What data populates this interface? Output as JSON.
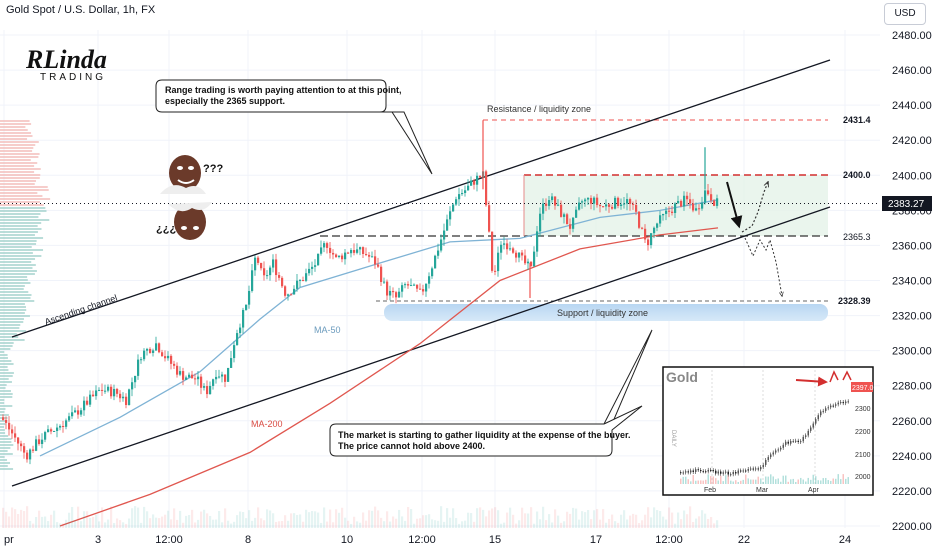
{
  "header": {
    "title": "Gold Spot / U.S. Dollar, 1h, FX",
    "currency_button": "USD"
  },
  "logo": {
    "mark": "RLinda",
    "sub": "TRADING"
  },
  "colors": {
    "up": "#26a69a",
    "down": "#ef5350",
    "ma50": "#7fb3d5",
    "ma200": "#e0574f",
    "channel": "#131722",
    "resistance": "#ef5350",
    "current_price": "#131722"
  },
  "annotations": {
    "callout_top": [
      "Range trading is worth paying attention to at this point,",
      "especially the 2365 support."
    ],
    "callout_bottom": [
      "The market is starting to gather liquidity at the expense of the buyer.",
      "The price cannot hold above 2400."
    ],
    "resistance_zone": "Resistance / liquidity zone",
    "support_zone": "Support / liquidity zone",
    "ascending_channel": "Ascending channel",
    "ma50": "MA-50",
    "ma200": "MA-200",
    "level_2431": "2431.4",
    "level_2400": "2400.0",
    "level_2365": "2365.3",
    "level_2328": "2328.39",
    "current_price": "2383.27",
    "meme_top": "???",
    "meme_bottom": "¿¿¿"
  },
  "inset": {
    "title": "Gold",
    "price_tag": "2397.0",
    "y_ticks": [
      "2300",
      "2200",
      "2100",
      "2000"
    ],
    "x_ticks": [
      "Feb",
      "Mar",
      "Apr"
    ],
    "side_label": "DAILY"
  },
  "chart_data": {
    "type": "candlestick",
    "title": "Gold Spot / U.S. Dollar, 1h, FX",
    "y_ticks": [
      2480,
      2460,
      2440,
      2420,
      2400,
      2380,
      2360,
      2340,
      2320,
      2300,
      2280,
      2260,
      2240,
      2220,
      2200
    ],
    "ylim": [
      2198,
      2488
    ],
    "x_ticks": [
      "pr",
      "3",
      "12:00",
      "8",
      "10",
      "12:00",
      "15",
      "17",
      "12:00",
      "22",
      "24"
    ],
    "levels": [
      {
        "name": "resistance",
        "value": 2431.4
      },
      {
        "name": "range-top",
        "value": 2400.0
      },
      {
        "name": "range-bottom",
        "value": 2365.3
      },
      {
        "name": "support",
        "value": 2328.39
      },
      {
        "name": "last-price",
        "value": 2383.27
      }
    ],
    "path_closes": [
      [
        0,
        2262
      ],
      [
        12,
        2252
      ],
      [
        25,
        2240
      ],
      [
        40,
        2250
      ],
      [
        55,
        2256
      ],
      [
        70,
        2262
      ],
      [
        85,
        2270
      ],
      [
        100,
        2278
      ],
      [
        115,
        2276
      ],
      [
        125,
        2272
      ],
      [
        140,
        2298
      ],
      [
        155,
        2304
      ],
      [
        165,
        2296
      ],
      [
        180,
        2286
      ],
      [
        195,
        2284
      ],
      [
        205,
        2276
      ],
      [
        215,
        2288
      ],
      [
        225,
        2284
      ],
      [
        235,
        2310
      ],
      [
        245,
        2325
      ],
      [
        255,
        2355
      ],
      [
        262,
        2340
      ],
      [
        272,
        2350
      ],
      [
        285,
        2332
      ],
      [
        300,
        2340
      ],
      [
        315,
        2350
      ],
      [
        325,
        2362
      ],
      [
        335,
        2352
      ],
      [
        350,
        2358
      ],
      [
        365,
        2355
      ],
      [
        375,
        2350
      ],
      [
        385,
        2334
      ],
      [
        395,
        2330
      ],
      [
        405,
        2338
      ],
      [
        420,
        2332
      ],
      [
        432,
        2350
      ],
      [
        445,
        2372
      ],
      [
        455,
        2388
      ],
      [
        465,
        2392
      ],
      [
        475,
        2398
      ],
      [
        482,
        2400
      ],
      [
        487,
        2372
      ],
      [
        492,
        2340
      ],
      [
        500,
        2362
      ],
      [
        510,
        2360
      ],
      [
        520,
        2352
      ],
      [
        530,
        2346
      ],
      [
        538,
        2378
      ],
      [
        548,
        2388
      ],
      [
        558,
        2380
      ],
      [
        570,
        2370
      ],
      [
        580,
        2385
      ],
      [
        590,
        2386
      ],
      [
        600,
        2382
      ],
      [
        612,
        2384
      ],
      [
        625,
        2386
      ],
      [
        635,
        2378
      ],
      [
        645,
        2360
      ],
      [
        655,
        2372
      ],
      [
        665,
        2378
      ],
      [
        675,
        2383
      ],
      [
        685,
        2386
      ],
      [
        695,
        2380
      ],
      [
        705,
        2392
      ],
      [
        712,
        2386
      ],
      [
        718,
        2383
      ]
    ],
    "series": [
      {
        "name": "MA-50",
        "values": [
          [
            40,
            2240
          ],
          [
            120,
            2262
          ],
          [
            200,
            2288
          ],
          [
            260,
            2318
          ],
          [
            300,
            2336
          ],
          [
            380,
            2350
          ],
          [
            450,
            2362
          ],
          [
            520,
            2364
          ],
          [
            600,
            2376
          ],
          [
            660,
            2380
          ],
          [
            718,
            2386
          ]
        ]
      },
      {
        "name": "MA-200",
        "values": [
          [
            60,
            2200
          ],
          [
            150,
            2218
          ],
          [
            250,
            2242
          ],
          [
            330,
            2270
          ],
          [
            420,
            2304
          ],
          [
            500,
            2340
          ],
          [
            580,
            2358
          ],
          [
            660,
            2366
          ],
          [
            718,
            2370
          ]
        ]
      }
    ],
    "scenario": {
      "arrow_solid": [
        [
          725,
          2396
        ],
        [
          740,
          2366
        ]
      ],
      "dotted_path": [
        [
          740,
          2366
        ],
        [
          752,
          2372
        ],
        [
          760,
          2400
        ]
      ],
      "dotted_down": [
        [
          740,
          2366
        ],
        [
          750,
          2360
        ],
        [
          760,
          2366
        ],
        [
          768,
          2355
        ],
        [
          780,
          2332
        ]
      ]
    }
  }
}
